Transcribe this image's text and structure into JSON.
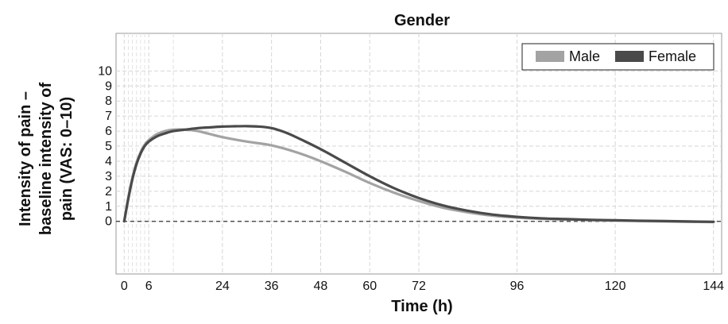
{
  "chart_data": {
    "type": "line",
    "title": "Gender",
    "xlabel": "Time (h)",
    "ylabel": [
      "Intensity of pain –",
      "baseline intensity of",
      "pain (VAS: 0–10)"
    ],
    "xlim": [
      -2,
      146
    ],
    "ylim": [
      -3.5,
      12.5
    ],
    "x_ticks": [
      0,
      6,
      24,
      36,
      48,
      60,
      72,
      96,
      120,
      144
    ],
    "y_ticks": [
      0,
      1,
      2,
      3,
      4,
      5,
      6,
      7,
      8,
      9,
      10
    ],
    "baseline": 0,
    "grid": true,
    "legend_position": "top-right",
    "series": [
      {
        "name": "Male",
        "color": "#a3a3a3",
        "x": [
          0,
          1,
          2,
          3,
          4,
          5,
          6,
          8,
          10,
          12,
          15,
          18,
          21,
          24,
          30,
          36,
          42,
          48,
          54,
          60,
          66,
          72,
          78,
          84,
          90,
          96,
          102,
          108,
          114,
          120,
          126,
          132,
          138,
          144
        ],
        "y": [
          0,
          1.6,
          2.9,
          3.9,
          4.6,
          5.1,
          5.4,
          5.8,
          6.0,
          6.1,
          6.1,
          6.0,
          5.8,
          5.6,
          5.3,
          5.05,
          4.6,
          4.0,
          3.3,
          2.55,
          1.9,
          1.35,
          0.9,
          0.6,
          0.38,
          0.25,
          0.17,
          0.12,
          0.08,
          0.05,
          0.02,
          0.0,
          -0.03,
          -0.05
        ]
      },
      {
        "name": "Female",
        "color": "#4a4a4a",
        "x": [
          0,
          1,
          2,
          3,
          4,
          5,
          6,
          8,
          10,
          12,
          15,
          18,
          21,
          24,
          27,
          30,
          33,
          36,
          39,
          42,
          48,
          54,
          60,
          66,
          72,
          78,
          84,
          90,
          96,
          102,
          108,
          114,
          120,
          126,
          132,
          138,
          144
        ],
        "y": [
          0,
          1.5,
          2.8,
          3.8,
          4.5,
          5.0,
          5.3,
          5.65,
          5.85,
          6.0,
          6.1,
          6.2,
          6.25,
          6.3,
          6.32,
          6.33,
          6.3,
          6.2,
          5.95,
          5.6,
          4.8,
          3.9,
          3.0,
          2.2,
          1.55,
          1.05,
          0.7,
          0.45,
          0.3,
          0.2,
          0.15,
          0.1,
          0.07,
          0.04,
          0.02,
          -0.01,
          -0.03
        ]
      }
    ]
  }
}
